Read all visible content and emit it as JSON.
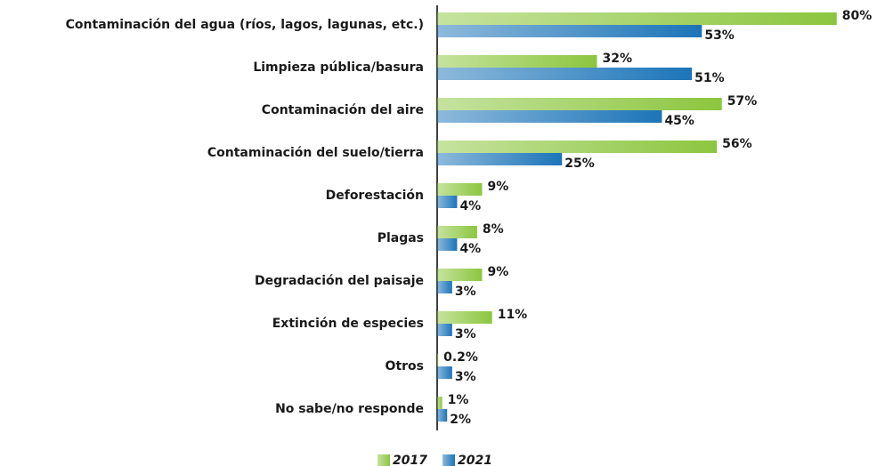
{
  "chart_data": {
    "type": "bar",
    "orientation": "horizontal",
    "categories": [
      "Contaminación del agua (ríos, lagos, lagunas, etc.)",
      "Limpieza pública/basura",
      "Contaminación del aire",
      "Contaminación del suelo/tierra",
      "Deforestación",
      "Plagas",
      "Degradación del paisaje",
      "Extinción de especies",
      "Otros",
      "No sabe/no responde"
    ],
    "series": [
      {
        "name": "2017",
        "color": "#8cc63f",
        "values": [
          80,
          32,
          57,
          56,
          9,
          8,
          9,
          11,
          0.2,
          1
        ],
        "value_labels": [
          "80%",
          "32%",
          "57%",
          "56%",
          "9%",
          "8%",
          "9%",
          "11%",
          "0.2%",
          "1%"
        ]
      },
      {
        "name": "2021",
        "color": "#1c74b8",
        "values": [
          53,
          51,
          45,
          25,
          4,
          4,
          3,
          3,
          3,
          2
        ],
        "value_labels": [
          "53%",
          "51%",
          "45%",
          "25%",
          "4%",
          "4%",
          "3%",
          "3%",
          "3%",
          "2%"
        ]
      }
    ],
    "legend": "bottom"
  }
}
